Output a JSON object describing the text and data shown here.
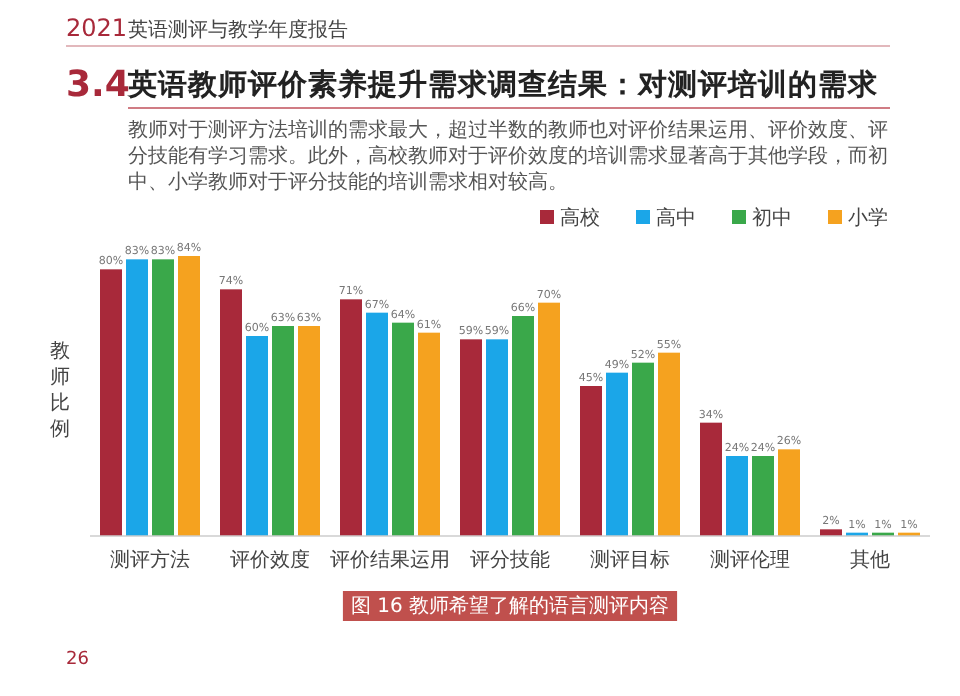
{
  "chart_data": {
    "type": "bar",
    "title": "英语教师评价素养提升需求调查结果：对测评培训的需求",
    "ylabel": "教师比例",
    "annotations": [
      "2021",
      "英语测评与教学年度报告",
      "3.4",
      "教师对于测评方法培训的需求最大，超过半数的教师也对评价结果运用、评价效度、评分技能有学习需求。此外，高校教师对于评价效度的培训需求显著高于其他学段，而初中、小学教师对于评分技能的培训需求相对较高。",
      "图 16  教师希望了解的语言测评内容",
      "26"
    ],
    "categories": [
      "测评方法",
      "评价效度",
      "评价结果运用",
      "评分技能",
      "测评目标",
      "测评伦理",
      "其他"
    ],
    "series": [
      {
        "name": "高校",
        "color": "#a8293a",
        "values": [
          80,
          74,
          71,
          59,
          45,
          34,
          2
        ],
        "value_labels": [
          "80%",
          "74%",
          "71%",
          "59%",
          "45%",
          "34%",
          "2%"
        ]
      },
      {
        "name": "高中",
        "color": "#1ba6e8",
        "values": [
          83,
          60,
          67,
          59,
          49,
          24,
          1
        ],
        "value_labels": [
          "83%",
          "60%",
          "67%",
          "59%",
          "49%",
          "24%",
          "1%"
        ]
      },
      {
        "name": "初中",
        "color": "#3aa84a",
        "values": [
          83,
          63,
          64,
          66,
          52,
          24,
          1
        ],
        "value_labels": [
          "83%",
          "63%",
          "64%",
          "66%",
          "52%",
          "24%",
          "1%"
        ]
      },
      {
        "name": "小学",
        "color": "#f5a21f",
        "values": [
          84,
          63,
          61,
          70,
          55,
          26,
          1
        ],
        "value_labels": [
          "84%",
          "63%",
          "61%",
          "70%",
          "55%",
          "26%",
          "1%"
        ]
      }
    ],
    "legend": "top right"
  }
}
